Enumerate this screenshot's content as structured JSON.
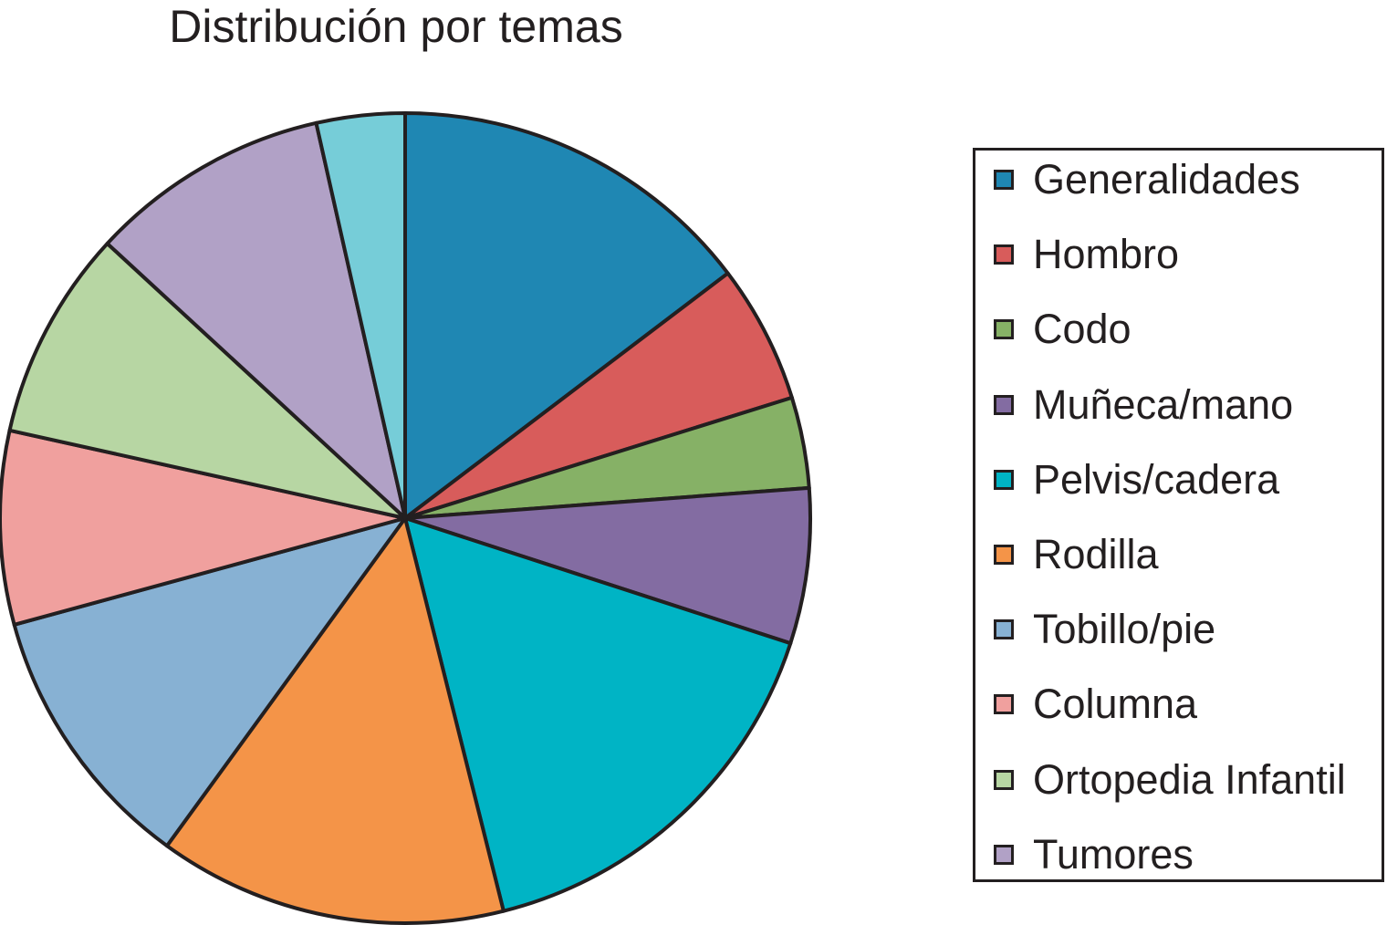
{
  "chart_data": {
    "type": "pie",
    "title": "Distribución por temas",
    "categories": [
      "Generalidades",
      "Hombro",
      "Codo",
      "Muñeca/mano",
      "Pelvis/cadera",
      "Rodilla",
      "Tobillo/pie",
      "Columna",
      "Ortopedia Infantil",
      "Tumores",
      ""
    ],
    "values": [
      15.4,
      5.8,
      3.8,
      6.5,
      16.9,
      14.6,
      11.3,
      8.1,
      8.8,
      10.1,
      3.7
    ],
    "colors": [
      "#1f87b3",
      "#d85c5b",
      "#86b166",
      "#836ca2",
      "#00b4c5",
      "#f49448",
      "#87b1d3",
      "#f0a09e",
      "#b7d6a3",
      "#b1a1c6",
      "#76cdd8"
    ],
    "legend": {
      "position": "right",
      "entries": [
        "Generalidades",
        "Hombro",
        "Codo",
        "Muñeca/mano",
        "Pelvis/cadera",
        "Rodilla",
        "Tobillo/pie",
        "Columna",
        "Ortopedia Infantil",
        "Tumores"
      ]
    },
    "start_angle": "12 o'clock",
    "direction": "clockwise"
  }
}
